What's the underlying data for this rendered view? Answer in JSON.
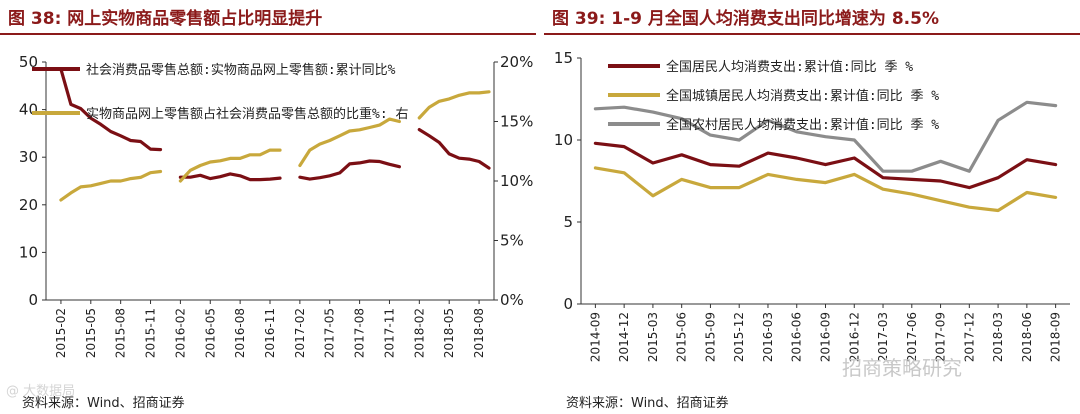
{
  "left": {
    "title": "图 38:  网上实物商品零售额占比明显提升",
    "source": "资料来源：Wind、招商证券",
    "chart_data": {
      "type": "line",
      "x": [
        "2015-01",
        "2015-02",
        "2015-03",
        "2015-04",
        "2015-05",
        "2015-06",
        "2015-07",
        "2015-08",
        "2015-09",
        "2015-10",
        "2015-11",
        "2015-12",
        "2016-01",
        "2016-02",
        "2016-03",
        "2016-04",
        "2016-05",
        "2016-06",
        "2016-07",
        "2016-08",
        "2016-09",
        "2016-10",
        "2016-11",
        "2016-12",
        "2017-01",
        "2017-02",
        "2017-03",
        "2017-04",
        "2017-05",
        "2017-06",
        "2017-07",
        "2017-08",
        "2017-09",
        "2017-10",
        "2017-11",
        "2017-12",
        "2018-01",
        "2018-02",
        "2018-03",
        "2018-04",
        "2018-05",
        "2018-06",
        "2018-07",
        "2018-08",
        "2018-09"
      ],
      "xticks": [
        "2015-02",
        "2015-05",
        "2015-08",
        "2015-11",
        "2016-02",
        "2016-05",
        "2016-08",
        "2016-11",
        "2017-02",
        "2017-05",
        "2017-08",
        "2017-11",
        "2018-02",
        "2018-05",
        "2018-08"
      ],
      "y_left": {
        "ticks": [
          "0",
          "10",
          "20",
          "30",
          "40",
          "50"
        ],
        "lim": [
          0,
          50
        ]
      },
      "y_right": {
        "ticks": [
          "0%",
          "5%",
          "10%",
          "15%",
          "20%"
        ],
        "lim": [
          0,
          20
        ]
      },
      "series": [
        {
          "name": "社会消费品零售总额:实物商品网上零售额:累计同比%",
          "axis": "left",
          "color": "#7b0f14",
          "values": [
            null,
            48.5,
            41.1,
            40.2,
            38.2,
            36.9,
            35.4,
            34.5,
            33.5,
            33.3,
            31.7,
            31.6,
            null,
            25.8,
            25.8,
            26.2,
            25.5,
            25.9,
            26.5,
            26.1,
            25.3,
            25.3,
            25.4,
            25.6,
            null,
            25.8,
            25.4,
            25.7,
            26.1,
            26.7,
            28.6,
            28.8,
            29.2,
            29.1,
            28.5,
            28.0,
            null,
            35.8,
            34.5,
            33.1,
            30.7,
            29.8,
            29.6,
            29.1,
            27.7
          ]
        },
        {
          "name": "实物商品网上零售额占社会消费品零售总额的比重%: 右",
          "axis": "right",
          "color": "#c8a83c",
          "values": [
            null,
            8.4,
            9.0,
            9.5,
            9.6,
            9.8,
            10.0,
            10.0,
            10.2,
            10.3,
            10.7,
            10.8,
            null,
            10.0,
            10.9,
            11.3,
            11.6,
            11.7,
            11.9,
            11.9,
            12.2,
            12.2,
            12.6,
            12.6,
            null,
            11.3,
            12.6,
            13.1,
            13.4,
            13.8,
            14.2,
            14.3,
            14.5,
            14.7,
            15.2,
            15.0,
            null,
            15.3,
            16.2,
            16.7,
            16.9,
            17.2,
            17.4,
            17.4,
            17.5
          ]
        }
      ]
    }
  },
  "right": {
    "title": "图 39:  1-9 月全国人均消费支出同比增速为 8.5%",
    "source": "资料来源：Wind、招商证券",
    "chart_data": {
      "type": "line",
      "x": [
        "2014-09",
        "2014-12",
        "2015-03",
        "2015-06",
        "2015-09",
        "2015-12",
        "2016-03",
        "2016-06",
        "2016-09",
        "2016-12",
        "2017-03",
        "2017-06",
        "2017-09",
        "2017-12",
        "2018-03",
        "2018-06",
        "2018-09"
      ],
      "xticks": [
        "2014-09",
        "2014-12",
        "2015-03",
        "2015-06",
        "2015-09",
        "2015-12",
        "2016-03",
        "2016-06",
        "2016-09",
        "2016-12",
        "2017-03",
        "2017-06",
        "2017-09",
        "2017-12",
        "2018-03",
        "2018-06",
        "2018-09"
      ],
      "y_left": {
        "ticks": [
          "0",
          "5",
          "10",
          "15"
        ],
        "lim": [
          0,
          15
        ]
      },
      "series": [
        {
          "name": "全国居民人均消费支出:累计值:同比 季 %",
          "color": "#7b0f14",
          "values": [
            9.8,
            9.6,
            8.6,
            9.1,
            8.5,
            8.4,
            9.2,
            8.9,
            8.5,
            8.9,
            7.7,
            7.6,
            7.5,
            7.1,
            7.7,
            8.8,
            8.5
          ]
        },
        {
          "name": "全国城镇居民人均消费支出:累计值:同比 季 %",
          "color": "#c8a83c",
          "values": [
            8.3,
            8.0,
            6.6,
            7.6,
            7.1,
            7.1,
            7.9,
            7.6,
            7.4,
            7.9,
            7.0,
            6.7,
            6.3,
            5.9,
            5.7,
            6.8,
            6.5
          ]
        },
        {
          "name": "全国农村居民人均消费支出:累计值:同比 季 %",
          "color": "#8c8c8c",
          "values": [
            11.9,
            12.0,
            11.7,
            11.3,
            10.3,
            10.0,
            11.2,
            10.5,
            10.2,
            10.0,
            8.1,
            8.1,
            8.7,
            8.1,
            11.2,
            12.3,
            12.1
          ]
        }
      ]
    }
  },
  "watermark": "招商策略研究",
  "watermark_corner": "@ 大数据局"
}
